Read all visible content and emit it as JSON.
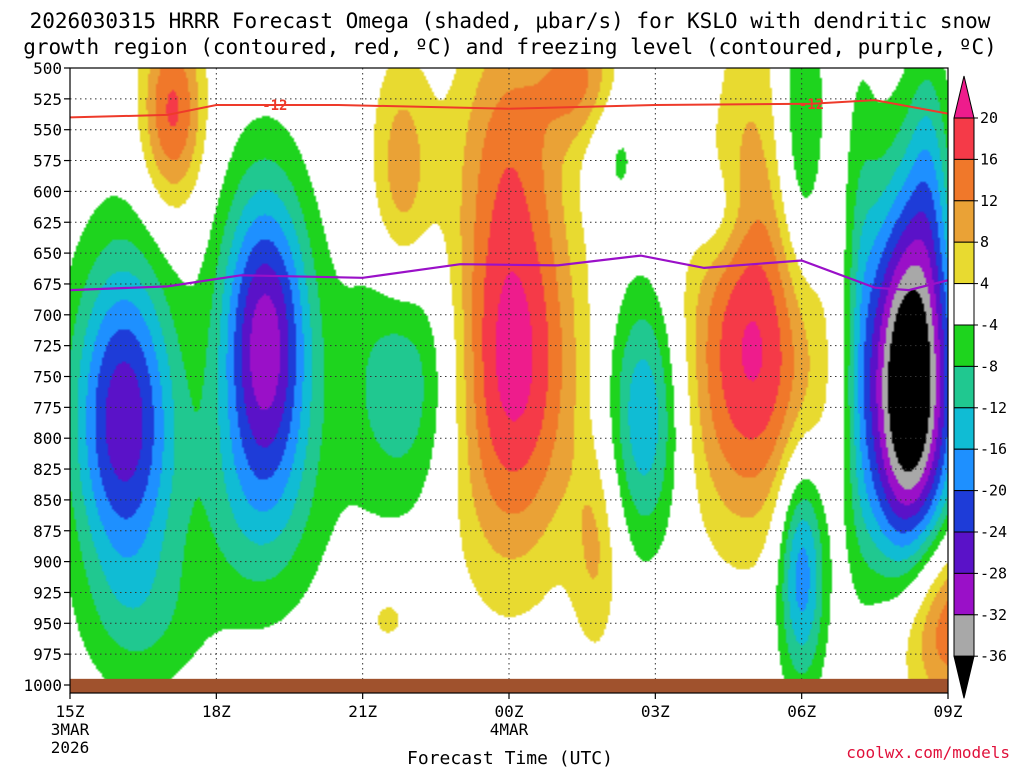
{
  "chart_data": {
    "type": "heatmap",
    "title_line1": "2026030315 HRRR Forecast Omega (shaded, μbar/s) for KSLO with dendritic snow",
    "title_line2": "growth region (contoured, red, ºC) and freezing level (contoured, purple, ºC)",
    "xlabel": "Forecast Time (UTC)",
    "x_hours": [
      0,
      18
    ],
    "x_ticks": [
      {
        "h": 0,
        "label": "15Z",
        "sub1": "3MAR",
        "sub2": "2026"
      },
      {
        "h": 3,
        "label": "18Z"
      },
      {
        "h": 6,
        "label": "21Z"
      },
      {
        "h": 9,
        "label": "00Z",
        "sub1": "4MAR"
      },
      {
        "h": 12,
        "label": "03Z"
      },
      {
        "h": 15,
        "label": "06Z"
      },
      {
        "h": 18,
        "label": "09Z"
      }
    ],
    "y_range_hpa": [
      500,
      1000
    ],
    "y_ticks": [
      "500",
      "525",
      "550",
      "575",
      "600",
      "625",
      "650",
      "675",
      "700",
      "725",
      "750",
      "775",
      "800",
      "825",
      "850",
      "875",
      "900",
      "925",
      "950",
      "975",
      "1000"
    ],
    "colorbar": {
      "labels": [
        "20",
        "16",
        "12",
        "8",
        "4",
        "-4",
        "-8",
        "-12",
        "-16",
        "-20",
        "-24",
        "-28",
        "-32",
        "-36"
      ],
      "bands": [
        {
          "lo": 20,
          "hi": 999,
          "color": "#ee1c8c"
        },
        {
          "lo": 16,
          "hi": 20,
          "color": "#f53a48"
        },
        {
          "lo": 12,
          "hi": 16,
          "color": "#f0782a"
        },
        {
          "lo": 8,
          "hi": 12,
          "color": "#eaa236"
        },
        {
          "lo": 4,
          "hi": 8,
          "color": "#e8da30"
        },
        {
          "lo": -4,
          "hi": 4,
          "color": "#ffffff"
        },
        {
          "lo": -8,
          "hi": -4,
          "color": "#1ed41e"
        },
        {
          "lo": -12,
          "hi": -8,
          "color": "#20c890"
        },
        {
          "lo": -16,
          "hi": -12,
          "color": "#10bcd4"
        },
        {
          "lo": -20,
          "hi": -16,
          "color": "#1e90ff"
        },
        {
          "lo": -24,
          "hi": -20,
          "color": "#1e3cd8"
        },
        {
          "lo": -28,
          "hi": -24,
          "color": "#5a12c8"
        },
        {
          "lo": -32,
          "hi": -28,
          "color": "#9a10c8"
        },
        {
          "lo": -36,
          "hi": -32,
          "color": "#a8a8a8"
        },
        {
          "lo": -999,
          "hi": -36,
          "color": "#000000"
        }
      ]
    },
    "omega_centers": [
      {
        "t": 1.1,
        "p": 785,
        "amp": -27,
        "st": 0.75,
        "sp": 95
      },
      {
        "t": 1.6,
        "p": 950,
        "amp": -5,
        "st": 0.9,
        "sp": 45
      },
      {
        "t": 2.1,
        "p": 535,
        "amp": 17,
        "st": 0.45,
        "sp": 55
      },
      {
        "t": 4.0,
        "p": 720,
        "amp": -30,
        "st": 0.65,
        "sp": 90
      },
      {
        "t": 3.8,
        "p": 860,
        "amp": -7,
        "st": 1.1,
        "sp": 70
      },
      {
        "t": 7.0,
        "p": 750,
        "amp": -13,
        "st": 0.95,
        "sp": 80
      },
      {
        "t": 6.8,
        "p": 590,
        "amp": 11,
        "st": 0.45,
        "sp": 70
      },
      {
        "t": 6.5,
        "p": 945,
        "amp": 5,
        "st": 0.5,
        "sp": 25
      },
      {
        "t": 9.0,
        "p": 740,
        "amp": 23,
        "st": 0.95,
        "sp": 110
      },
      {
        "t": 9.0,
        "p": 545,
        "amp": 9,
        "st": 0.75,
        "sp": 75
      },
      {
        "t": 10.5,
        "p": 510,
        "amp": 12,
        "st": 0.6,
        "sp": 35
      },
      {
        "t": 10.8,
        "p": 890,
        "amp": 8,
        "st": 0.35,
        "sp": 60
      },
      {
        "t": 11.2,
        "p": 560,
        "amp": -6,
        "st": 0.4,
        "sp": 45
      },
      {
        "t": 11.8,
        "p": 780,
        "amp": -17,
        "st": 0.55,
        "sp": 75
      },
      {
        "t": 14.0,
        "p": 740,
        "amp": 19,
        "st": 1.05,
        "sp": 95
      },
      {
        "t": 14.0,
        "p": 540,
        "amp": 6,
        "st": 0.55,
        "sp": 120
      },
      {
        "t": 13.3,
        "p": 620,
        "amp": -6,
        "st": 0.45,
        "sp": 30
      },
      {
        "t": 15.0,
        "p": 905,
        "amp": -20,
        "st": 0.35,
        "sp": 65
      },
      {
        "t": 15.0,
        "p": 560,
        "amp": -10,
        "st": 0.35,
        "sp": 95
      },
      {
        "t": 16.2,
        "p": 700,
        "amp": -6,
        "st": 0.25,
        "sp": 160
      },
      {
        "t": 17.2,
        "p": 760,
        "amp": -45,
        "st": 0.65,
        "sp": 110
      },
      {
        "t": 17.6,
        "p": 580,
        "amp": -8,
        "st": 0.3,
        "sp": 75
      },
      {
        "t": 17.9,
        "p": 945,
        "amp": 19,
        "st": 0.8,
        "sp": 55
      }
    ],
    "dendritic_isotherm": {
      "label": "-12",
      "color": "#ee3a2a",
      "points": [
        [
          0,
          540
        ],
        [
          2,
          538
        ],
        [
          3,
          530
        ],
        [
          5.5,
          530
        ],
        [
          9,
          533
        ],
        [
          12,
          530
        ],
        [
          15.2,
          529
        ],
        [
          16.5,
          526
        ],
        [
          18,
          537
        ]
      ]
    },
    "freezing_level": {
      "label": "0",
      "color": "#9a10c8",
      "points": [
        [
          0,
          680
        ],
        [
          2,
          677
        ],
        [
          3.5,
          668
        ],
        [
          6,
          670
        ],
        [
          8,
          659
        ],
        [
          10,
          660
        ],
        [
          11.7,
          652
        ],
        [
          13,
          662
        ],
        [
          15,
          656
        ],
        [
          16.5,
          678
        ],
        [
          17.2,
          680
        ],
        [
          18,
          672
        ]
      ]
    },
    "terrain": {
      "color": "#a0522d",
      "top_hpa": 995
    }
  },
  "credit": "coolwx.com/models"
}
